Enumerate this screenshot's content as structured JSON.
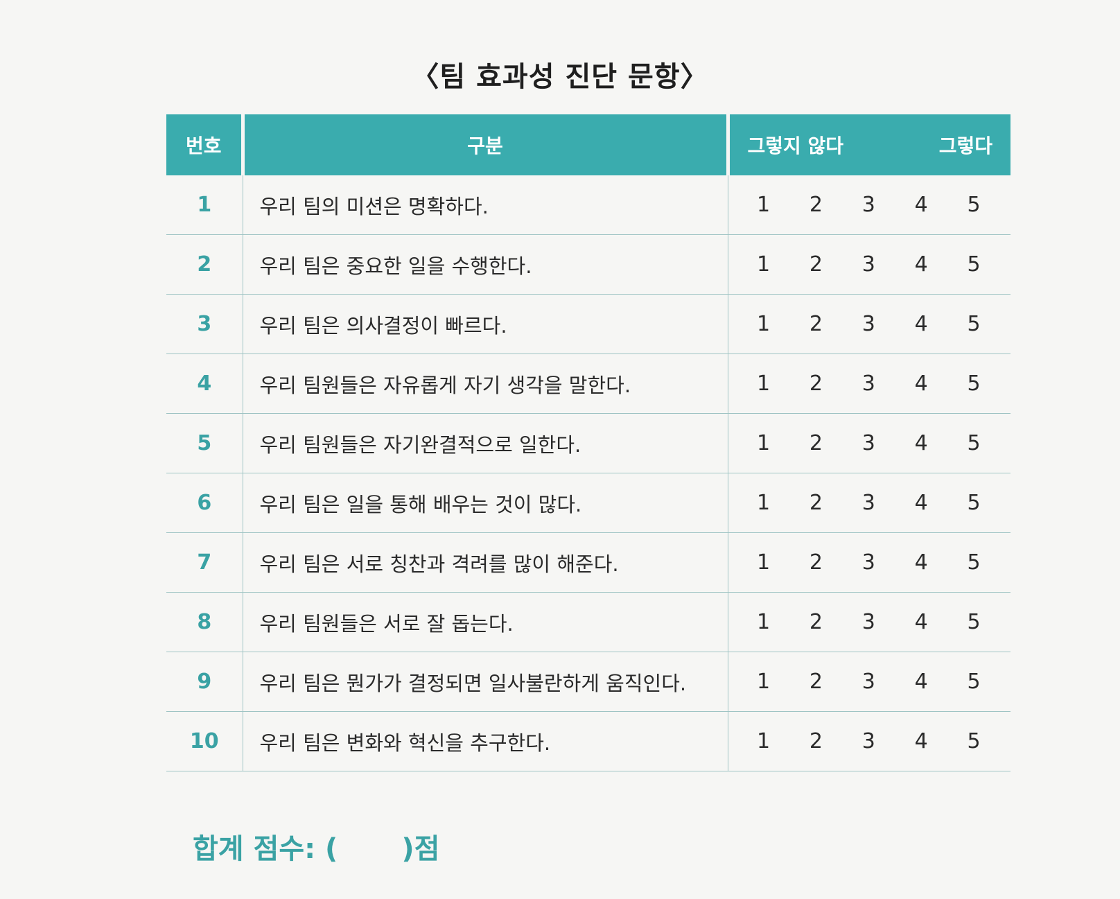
{
  "title": "〈팀 효과성 진단 문항〉",
  "table": {
    "header": {
      "number": "번호",
      "item": "구분",
      "scale_low": "그렇지 않다",
      "scale_high": "그렇다"
    },
    "rows": [
      {
        "number": "1",
        "text": "우리 팀의 미션은 명확하다.",
        "options": [
          "1",
          "2",
          "3",
          "4",
          "5"
        ]
      },
      {
        "number": "2",
        "text": "우리 팀은 중요한 일을 수행한다.",
        "options": [
          "1",
          "2",
          "3",
          "4",
          "5"
        ]
      },
      {
        "number": "3",
        "text": "우리 팀은 의사결정이 빠르다.",
        "options": [
          "1",
          "2",
          "3",
          "4",
          "5"
        ]
      },
      {
        "number": "4",
        "text": "우리 팀원들은 자유롭게 자기 생각을 말한다.",
        "options": [
          "1",
          "2",
          "3",
          "4",
          "5"
        ]
      },
      {
        "number": "5",
        "text": "우리 팀원들은 자기완결적으로 일한다.",
        "options": [
          "1",
          "2",
          "3",
          "4",
          "5"
        ]
      },
      {
        "number": "6",
        "text": "우리 팀은 일을 통해 배우는 것이 많다.",
        "options": [
          "1",
          "2",
          "3",
          "4",
          "5"
        ]
      },
      {
        "number": "7",
        "text": "우리 팀은 서로 칭찬과 격려를 많이 해준다.",
        "options": [
          "1",
          "2",
          "3",
          "4",
          "5"
        ]
      },
      {
        "number": "8",
        "text": "우리 팀원들은 서로 잘 돕는다.",
        "options": [
          "1",
          "2",
          "3",
          "4",
          "5"
        ]
      },
      {
        "number": "9",
        "text": "우리 팀은 뭔가가 결정되면 일사불란하게 움직인다.",
        "options": [
          "1",
          "2",
          "3",
          "4",
          "5"
        ]
      },
      {
        "number": "10",
        "text": "우리 팀은 변화와 혁신을 추구한다.",
        "options": [
          "1",
          "2",
          "3",
          "4",
          "5"
        ]
      }
    ]
  },
  "total": {
    "label": "합계 점수: (",
    "suffix": ")점"
  },
  "colors": {
    "accent": "#3aacae",
    "number_text": "#3aa2a4",
    "divider": "#9fc4c4"
  }
}
